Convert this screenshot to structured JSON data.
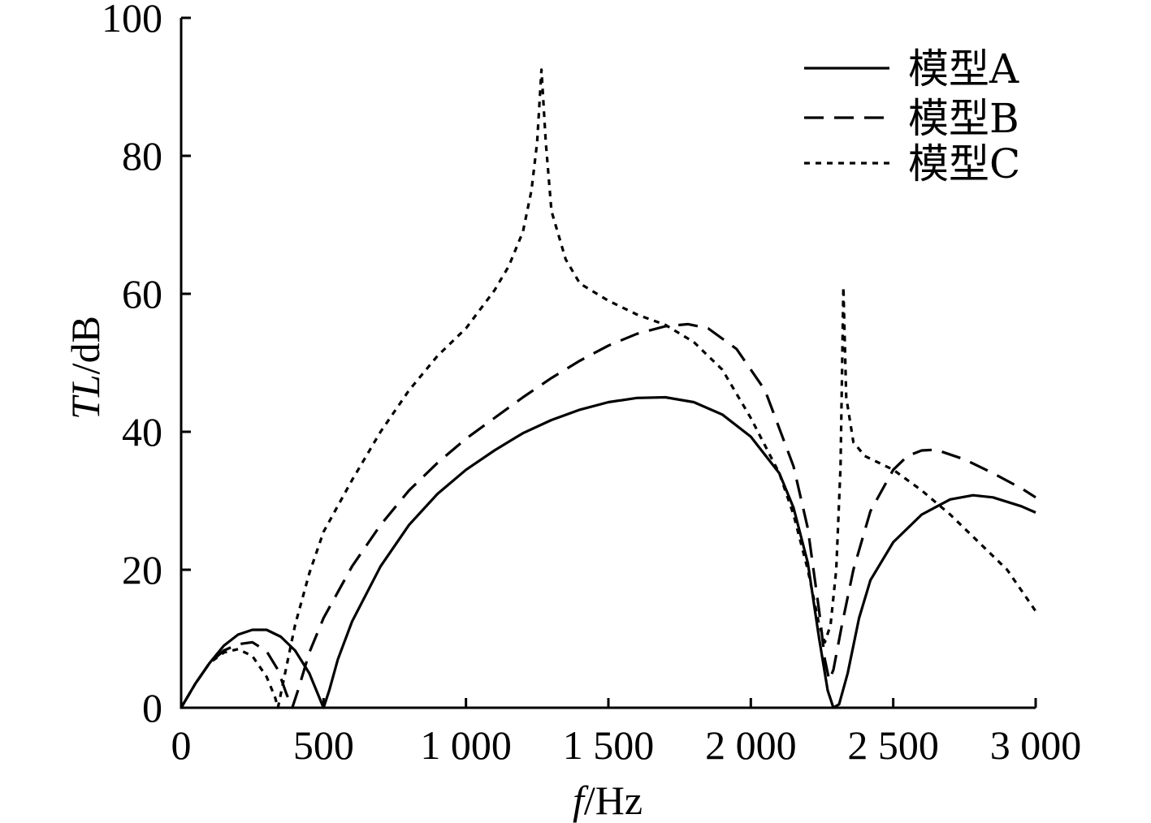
{
  "chart_data": {
    "type": "line",
    "xlabel_var": "f",
    "xlabel_unit": "/Hz",
    "ylabel_var": "TL",
    "ylabel_unit": "/dB",
    "xlim": [
      0,
      3000
    ],
    "ylim": [
      0,
      100
    ],
    "x_ticks": [
      0,
      500,
      1000,
      1500,
      2000,
      2500,
      3000
    ],
    "x_tick_labels": [
      "0",
      "500",
      "1 000",
      "1 500",
      "2 000",
      "2 500",
      "3 000"
    ],
    "y_ticks": [
      0,
      20,
      40,
      60,
      80,
      100
    ],
    "y_tick_labels": [
      "0",
      "20",
      "40",
      "60",
      "80",
      "100"
    ],
    "grid": false,
    "legend_position": "top-right",
    "series": [
      {
        "name": "模型A",
        "dash": "solid",
        "points": [
          [
            0,
            0
          ],
          [
            50,
            3.5
          ],
          [
            100,
            6.5
          ],
          [
            150,
            9.0
          ],
          [
            200,
            10.6
          ],
          [
            250,
            11.3
          ],
          [
            300,
            11.3
          ],
          [
            350,
            10.3
          ],
          [
            400,
            8.3
          ],
          [
            450,
            5.0
          ],
          [
            490,
            1.0
          ],
          [
            500,
            0
          ],
          [
            520,
            2.5
          ],
          [
            550,
            7.0
          ],
          [
            600,
            12.5
          ],
          [
            700,
            20.5
          ],
          [
            800,
            26.5
          ],
          [
            900,
            31.0
          ],
          [
            1000,
            34.5
          ],
          [
            1100,
            37.3
          ],
          [
            1200,
            39.8
          ],
          [
            1300,
            41.7
          ],
          [
            1400,
            43.2
          ],
          [
            1500,
            44.3
          ],
          [
            1600,
            44.9
          ],
          [
            1700,
            45.0
          ],
          [
            1800,
            44.3
          ],
          [
            1900,
            42.5
          ],
          [
            2000,
            39.3
          ],
          [
            2100,
            34.0
          ],
          [
            2150,
            29.0
          ],
          [
            2200,
            21.0
          ],
          [
            2240,
            10.0
          ],
          [
            2270,
            2.5
          ],
          [
            2290,
            0
          ],
          [
            2310,
            0.5
          ],
          [
            2340,
            5.0
          ],
          [
            2380,
            13.0
          ],
          [
            2420,
            18.5
          ],
          [
            2500,
            24.0
          ],
          [
            2600,
            28.0
          ],
          [
            2700,
            30.2
          ],
          [
            2780,
            30.8
          ],
          [
            2850,
            30.5
          ],
          [
            2950,
            29.2
          ],
          [
            3000,
            28.3
          ]
        ]
      },
      {
        "name": "模型B",
        "dash": "long",
        "points": [
          [
            0,
            0
          ],
          [
            50,
            3.5
          ],
          [
            100,
            6.5
          ],
          [
            150,
            8.3
          ],
          [
            200,
            9.2
          ],
          [
            250,
            9.5
          ],
          [
            300,
            8.2
          ],
          [
            340,
            5.5
          ],
          [
            370,
            2.0
          ],
          [
            390,
            0
          ],
          [
            410,
            2.5
          ],
          [
            450,
            8.0
          ],
          [
            500,
            13.0
          ],
          [
            600,
            20.5
          ],
          [
            700,
            26.5
          ],
          [
            800,
            31.5
          ],
          [
            900,
            35.5
          ],
          [
            1000,
            39.0
          ],
          [
            1100,
            42.0
          ],
          [
            1200,
            45.0
          ],
          [
            1300,
            47.8
          ],
          [
            1400,
            50.3
          ],
          [
            1500,
            52.5
          ],
          [
            1600,
            54.2
          ],
          [
            1700,
            55.3
          ],
          [
            1780,
            55.6
          ],
          [
            1850,
            55.0
          ],
          [
            1950,
            52.0
          ],
          [
            2050,
            46.0
          ],
          [
            2150,
            35.0
          ],
          [
            2200,
            26.0
          ],
          [
            2240,
            14.0
          ],
          [
            2260,
            7.0
          ],
          [
            2275,
            4.0
          ],
          [
            2290,
            5.5
          ],
          [
            2320,
            12.0
          ],
          [
            2360,
            20.0
          ],
          [
            2420,
            28.5
          ],
          [
            2500,
            34.5
          ],
          [
            2550,
            36.5
          ],
          [
            2600,
            37.3
          ],
          [
            2650,
            37.4
          ],
          [
            2750,
            36.0
          ],
          [
            2850,
            34.0
          ],
          [
            2950,
            31.8
          ],
          [
            3000,
            30.5
          ]
        ]
      },
      {
        "name": "模型C",
        "dash": "short",
        "points": [
          [
            0,
            0
          ],
          [
            50,
            3.5
          ],
          [
            100,
            6.5
          ],
          [
            150,
            8.0
          ],
          [
            200,
            8.5
          ],
          [
            250,
            7.5
          ],
          [
            300,
            4.5
          ],
          [
            330,
            1.5
          ],
          [
            340,
            0
          ],
          [
            360,
            4.0
          ],
          [
            400,
            12.0
          ],
          [
            450,
            19.5
          ],
          [
            500,
            25.5
          ],
          [
            600,
            33.0
          ],
          [
            700,
            40.0
          ],
          [
            800,
            46.0
          ],
          [
            900,
            51.0
          ],
          [
            1000,
            55.0
          ],
          [
            1100,
            60.5
          ],
          [
            1150,
            64.0
          ],
          [
            1200,
            69.0
          ],
          [
            1230,
            75.0
          ],
          [
            1250,
            82.0
          ],
          [
            1265,
            92.5
          ],
          [
            1280,
            82.0
          ],
          [
            1300,
            72.0
          ],
          [
            1350,
            65.0
          ],
          [
            1400,
            61.5
          ],
          [
            1500,
            59.0
          ],
          [
            1600,
            57.0
          ],
          [
            1700,
            55.5
          ],
          [
            1800,
            53.0
          ],
          [
            1900,
            49.0
          ],
          [
            2000,
            42.0
          ],
          [
            2100,
            34.0
          ],
          [
            2150,
            28.0
          ],
          [
            2200,
            20.0
          ],
          [
            2240,
            12.0
          ],
          [
            2260,
            9.5
          ],
          [
            2280,
            12.0
          ],
          [
            2300,
            20.0
          ],
          [
            2315,
            35.0
          ],
          [
            2325,
            61.0
          ],
          [
            2335,
            45.0
          ],
          [
            2360,
            38.5
          ],
          [
            2400,
            36.5
          ],
          [
            2500,
            34.5
          ],
          [
            2600,
            31.5
          ],
          [
            2700,
            28.0
          ],
          [
            2800,
            24.0
          ],
          [
            2900,
            20.0
          ],
          [
            2950,
            17.0
          ],
          [
            3000,
            14.0
          ]
        ]
      }
    ]
  }
}
